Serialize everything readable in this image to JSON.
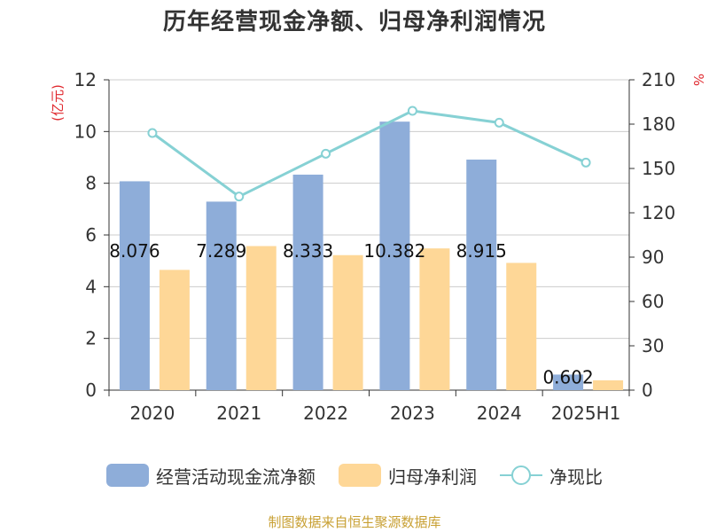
{
  "title": "历年经营现金净额、归母净利润情况",
  "source": "制图数据来自恒生聚源数据库",
  "colors": {
    "cash_flow": "#8eadd9",
    "net_profit": "#fed797",
    "ratio_line": "#86d1d4",
    "grid": "#cccccc",
    "axis": "#333333",
    "unit": "#e0282e"
  },
  "legend": {
    "cash_flow": "经营活动现金流净额",
    "net_profit": "归母净利润",
    "ratio": "净现比"
  },
  "chart_data": {
    "type": "bar",
    "title": "历年经营现金净额、归母净利润情况",
    "categories": [
      "2020",
      "2021",
      "2022",
      "2023",
      "2024",
      "2025H1"
    ],
    "series": [
      {
        "name": "经营活动现金流净额",
        "type": "bar",
        "axis": "left",
        "values": [
          8.076,
          7.289,
          8.333,
          10.382,
          8.915,
          0.602
        ]
      },
      {
        "name": "归母净利润",
        "type": "bar",
        "axis": "left",
        "values": [
          4.65,
          5.57,
          5.22,
          5.48,
          4.92,
          0.38
        ]
      },
      {
        "name": "净现比",
        "type": "line",
        "axis": "right",
        "values": [
          174,
          131,
          160,
          189,
          181,
          154
        ]
      }
    ],
    "data_labels": [
      "8.076",
      "7.289",
      "8.333",
      "10.382",
      "8.915",
      "0.602"
    ],
    "left_axis": {
      "unit": "(亿元)",
      "ylim": [
        0,
        12
      ],
      "ticks": [
        "0",
        "2",
        "4",
        "6",
        "8",
        "10",
        "12"
      ]
    },
    "right_axis": {
      "unit": "%",
      "ylim": [
        0,
        210
      ],
      "ticks": [
        "0",
        "30",
        "60",
        "90",
        "120",
        "150",
        "180",
        "210"
      ]
    },
    "grid": true,
    "legend_position": "bottom"
  }
}
